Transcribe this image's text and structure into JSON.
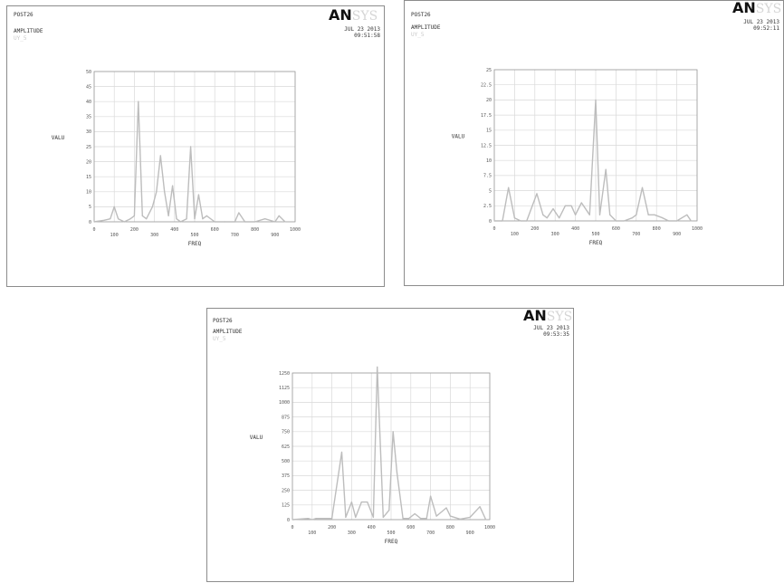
{
  "panels": [
    {
      "header": {
        "title": "POST26",
        "subtitle": "AMPLITUDE",
        "var_label": "UY_5"
      },
      "logo": {
        "bold": "AN",
        "faded": "SYS"
      },
      "date": "JUL 23 2013",
      "time": "09:51:58"
    },
    {
      "header": {
        "title": "POST26",
        "subtitle": "AMPLITUDE",
        "var_label": "UY_5"
      },
      "logo": {
        "bold": "AN",
        "faded": "SYS"
      },
      "date": "JUL 23 2013",
      "time": "09:52:11"
    },
    {
      "header": {
        "title": "POST26",
        "subtitle": "AMPLITUDE",
        "var_label": "UY_5"
      },
      "logo": {
        "bold": "AN",
        "faded": "SYS"
      },
      "date": "JUL 23 2013",
      "time": "09:53:35"
    }
  ],
  "chart_data": [
    {
      "type": "line",
      "xlabel": "FREQ",
      "ylabel": "VALU",
      "xlim": [
        0,
        1000
      ],
      "ylim": [
        0,
        50
      ],
      "x_ticks": [
        "0",
        "100",
        "200",
        "300",
        "400",
        "500",
        "600",
        "700",
        "800",
        "900",
        "1000"
      ],
      "y_ticks": [
        "0",
        "5",
        "10",
        "15",
        "20",
        "25",
        "30",
        "35",
        "40",
        "45",
        "50"
      ],
      "grid": true,
      "series": [
        {
          "color": "#bdbdbd",
          "x": [
            0,
            50,
            80,
            100,
            120,
            150,
            180,
            200,
            220,
            240,
            260,
            290,
            310,
            330,
            350,
            370,
            390,
            410,
            430,
            460,
            480,
            500,
            520,
            540,
            560,
            600,
            650,
            700,
            720,
            750,
            800,
            850,
            900,
            920,
            950
          ],
          "y": [
            0,
            0.5,
            1,
            5,
            1,
            0,
            1,
            2,
            40,
            2,
            1,
            5,
            10,
            22,
            10,
            2,
            12,
            1,
            0,
            1,
            25,
            1,
            9,
            1,
            2,
            0,
            0,
            0,
            3,
            0,
            0,
            1,
            0,
            2,
            0
          ]
        }
      ]
    },
    {
      "type": "line",
      "xlabel": "FREQ",
      "ylabel": "VALU",
      "xlim": [
        0,
        1000
      ],
      "ylim": [
        0,
        25
      ],
      "x_ticks": [
        "0",
        "100",
        "200",
        "300",
        "400",
        "500",
        "600",
        "700",
        "800",
        "900",
        "1000"
      ],
      "y_ticks": [
        "0",
        "2.5",
        "5",
        "7.5",
        "10",
        "12.5",
        "15",
        "17.5",
        "20",
        "22.5",
        "25"
      ],
      "grid": true,
      "series": [
        {
          "color": "#bdbdbd",
          "x": [
            0,
            40,
            70,
            100,
            130,
            160,
            210,
            240,
            260,
            290,
            320,
            350,
            380,
            400,
            430,
            470,
            500,
            520,
            550,
            570,
            600,
            640,
            680,
            700,
            730,
            760,
            790,
            830,
            860,
            900,
            950,
            970
          ],
          "y": [
            0,
            0,
            5.5,
            0.5,
            0,
            0,
            4.5,
            1,
            0.5,
            2,
            0.5,
            2.5,
            2.5,
            1,
            3,
            1,
            20,
            1,
            8.5,
            1,
            0,
            0,
            0.5,
            1,
            5.5,
            1,
            1,
            0.5,
            0,
            0,
            1,
            0
          ]
        }
      ]
    },
    {
      "type": "line",
      "xlabel": "FREQ",
      "ylabel": "VALU",
      "xlim": [
        0,
        1000
      ],
      "ylim": [
        0,
        1250
      ],
      "x_ticks": [
        "0",
        "100",
        "200",
        "300",
        "400",
        "500",
        "600",
        "700",
        "800",
        "900",
        "1000"
      ],
      "y_ticks": [
        "0",
        "125",
        "250",
        "375",
        "500",
        "625",
        "750",
        "875",
        "1000",
        "1125",
        "1250"
      ],
      "grid": true,
      "series": [
        {
          "color": "#bdbdbd",
          "x": [
            0,
            80,
            100,
            120,
            200,
            250,
            270,
            300,
            320,
            350,
            380,
            410,
            430,
            460,
            490,
            510,
            530,
            560,
            590,
            620,
            650,
            680,
            700,
            730,
            780,
            800,
            850,
            900,
            950,
            980
          ],
          "y": [
            0,
            10,
            0,
            10,
            10,
            575,
            20,
            150,
            20,
            150,
            150,
            20,
            1300,
            20,
            80,
            750,
            400,
            10,
            10,
            50,
            10,
            10,
            200,
            30,
            100,
            30,
            5,
            20,
            110,
            0
          ]
        }
      ]
    }
  ]
}
